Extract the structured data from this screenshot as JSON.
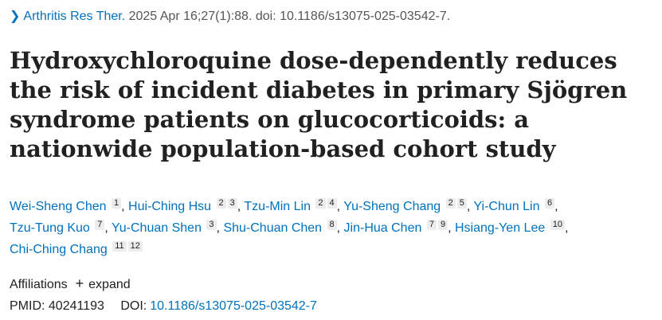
{
  "citation": {
    "chevron_icon": "chevron-right-icon",
    "journal": "Arthritis Res Ther.",
    "details": " 2025 Apr 16;27(1):88. doi: 10.1186/s13075-025-03542-7."
  },
  "title": "Hydroxychloroquine dose-dependently reduces the risk of incident diabetes in primary Sjögren syndrome patients on glucocorticoids: a nationwide population-based cohort study",
  "authors": [
    {
      "name": "Wei-Sheng Chen",
      "affiliations": [
        "1"
      ]
    },
    {
      "name": "Hui-Ching Hsu",
      "affiliations": [
        "2",
        "3"
      ]
    },
    {
      "name": "Tzu-Min Lin",
      "affiliations": [
        "2",
        "4"
      ]
    },
    {
      "name": "Yu-Sheng Chang",
      "affiliations": [
        "2",
        "5"
      ]
    },
    {
      "name": "Yi-Chun Lin",
      "affiliations": [
        "6"
      ]
    },
    {
      "name": "Tzu-Tung Kuo",
      "affiliations": [
        "7"
      ]
    },
    {
      "name": "Yu-Chuan Shen",
      "affiliations": [
        "3"
      ]
    },
    {
      "name": "Shu-Chuan Chen",
      "affiliations": [
        "8"
      ]
    },
    {
      "name": "Jin-Hua Chen",
      "affiliations": [
        "7",
        "9"
      ]
    },
    {
      "name": "Hsiang-Yen Lee",
      "affiliations": [
        "10"
      ]
    },
    {
      "name": "Chi-Ching Chang",
      "affiliations": [
        "11",
        "12"
      ]
    }
  ],
  "affiliations_row": {
    "label": "Affiliations",
    "toggle_icon": "plus-icon",
    "toggle_label": "expand"
  },
  "ids": {
    "pmid_label": "PMID:",
    "pmid": "40241193",
    "doi_label": "DOI:",
    "doi": "10.1186/s13075-025-03542-7"
  },
  "colors": {
    "link": "#0071bc",
    "text": "#212121",
    "muted": "#555555",
    "badge_bg": "#ececec"
  }
}
